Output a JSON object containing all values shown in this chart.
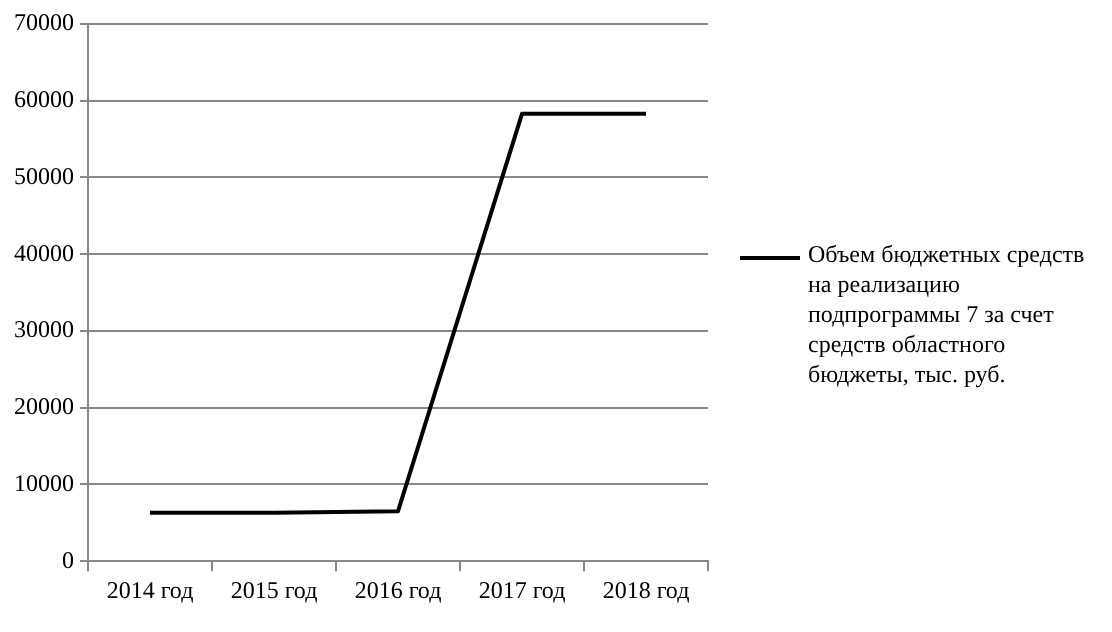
{
  "chart_data": {
    "type": "line",
    "categories": [
      "2014 год",
      "2015 год",
      "2016 год",
      "2017 год",
      "2018 год"
    ],
    "series": [
      {
        "name": "Объем бюджетных средств на реализацию подпрограммы 7 за счет средств областного бюджеты, тыс. руб.",
        "color": "#000000",
        "values": [
          6300,
          6300,
          6500,
          58300,
          58300
        ]
      }
    ],
    "ylim": [
      0,
      70000
    ],
    "yticks": [
      0,
      10000,
      20000,
      30000,
      40000,
      50000,
      60000,
      70000
    ],
    "grid": "y",
    "legend": "right",
    "marker": "none",
    "line_style": "solid"
  }
}
